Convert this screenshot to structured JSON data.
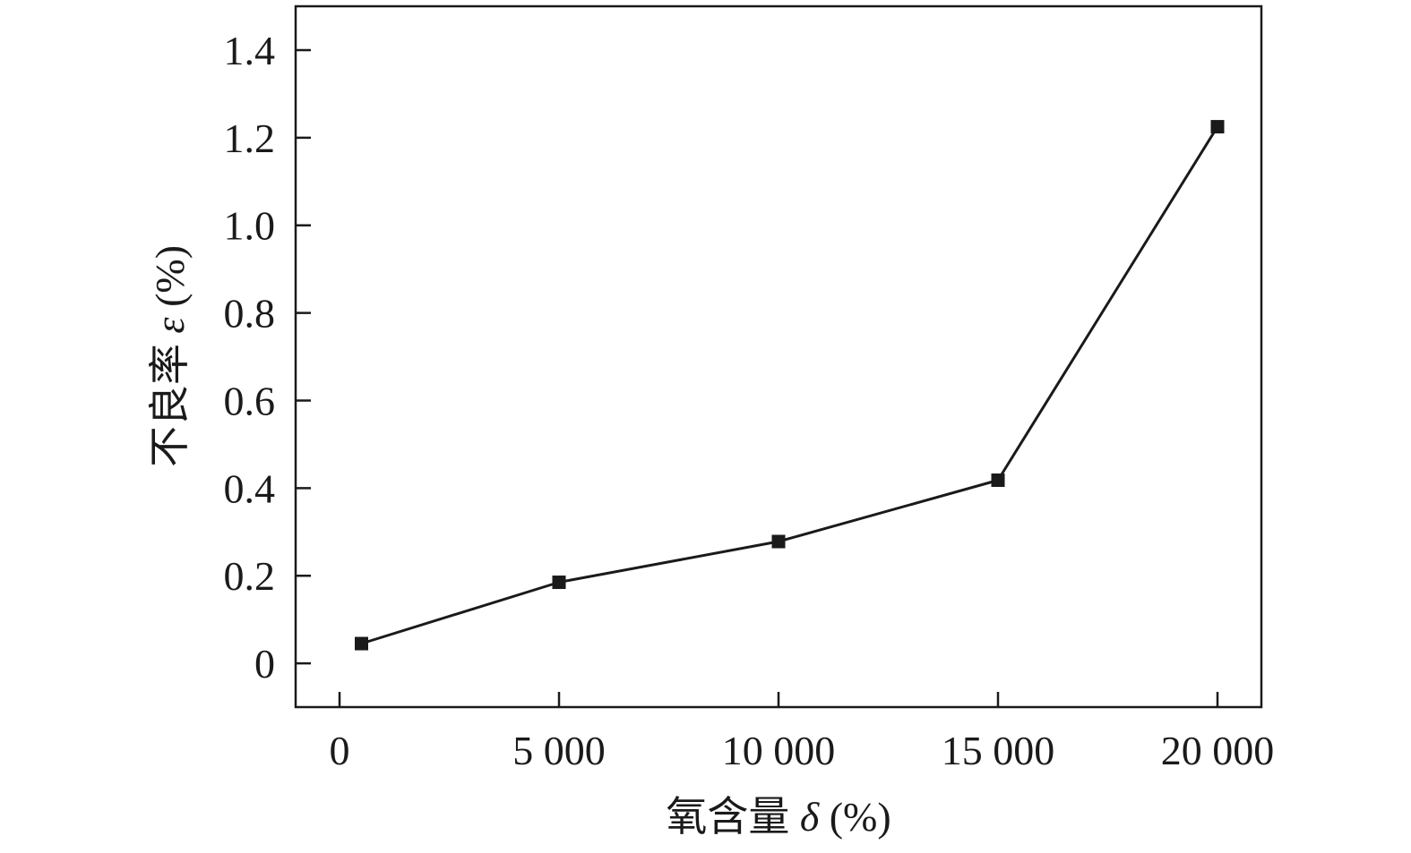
{
  "chart_data": {
    "type": "line",
    "x": [
      500,
      5000,
      10000,
      15000,
      20000
    ],
    "series": [
      {
        "values": [
          0.045,
          0.185,
          0.278,
          0.418,
          1.225
        ]
      }
    ],
    "xlim": [
      -1000,
      21000
    ],
    "ylim": [
      -0.1,
      1.5
    ],
    "x_ticks": [
      0,
      5000,
      10000,
      15000,
      20000
    ],
    "x_tick_labels": [
      "0",
      "5 000",
      "10 000",
      "15 000",
      "20 000"
    ],
    "y_ticks": [
      0,
      0.2,
      0.4,
      0.6,
      0.8,
      1.0,
      1.2,
      1.4
    ],
    "y_tick_labels": [
      "0",
      "0.2",
      "0.4",
      "0.6",
      "0.8",
      "1.0",
      "1.2",
      "1.4"
    ],
    "xlabel": {
      "prefix": "氧含量 ",
      "symbol": "δ",
      "suffix": " (%)"
    },
    "ylabel": {
      "prefix": "不良率 ",
      "symbol": "ε",
      "suffix": " (%)"
    },
    "marker": "square",
    "grid": false,
    "line_color": "#1a1a1a",
    "marker_color": "#1a1a1a"
  }
}
